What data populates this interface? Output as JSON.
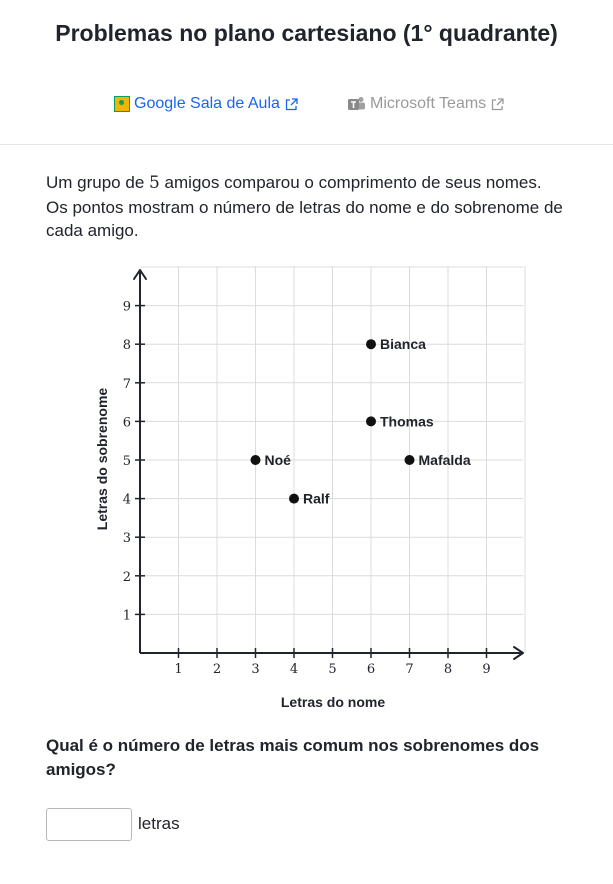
{
  "header": {
    "title": "Problemas no plano cartesiano (1° quadrante)",
    "share_classroom": "Google Sala de Aula",
    "share_teams": "Microsoft Teams"
  },
  "question": {
    "intro_prefix": "Um grupo de ",
    "intro_number": "5",
    "intro_suffix": " amigos comparou o comprimento de seus nomes. Os pontos mostram o número de letras do nome e do sobrenome de cada amigo."
  },
  "chart_data": {
    "type": "scatter",
    "title": "",
    "xlabel": "Letras do nome",
    "ylabel": "Letras do sobrenome",
    "xlim": [
      0,
      10
    ],
    "ylim": [
      0,
      10
    ],
    "xticks": [
      1,
      2,
      3,
      4,
      5,
      6,
      7,
      8,
      9
    ],
    "yticks": [
      1,
      2,
      3,
      4,
      5,
      6,
      7,
      8,
      9
    ],
    "grid": true,
    "points": [
      {
        "label": "Noé",
        "x": 3,
        "y": 5
      },
      {
        "label": "Ralf",
        "x": 4,
        "y": 4
      },
      {
        "label": "Bianca",
        "x": 6,
        "y": 8
      },
      {
        "label": "Thomas",
        "x": 6,
        "y": 6
      },
      {
        "label": "Mafalda",
        "x": 7,
        "y": 5
      }
    ]
  },
  "prompt": {
    "text": "Qual é o número de letras mais comum nos sobrenomes dos amigos?",
    "answer_value": "",
    "answer_placeholder": "",
    "unit": "letras"
  },
  "colors": {
    "link": "#1865f2",
    "muted": "#9a9a9a",
    "text": "#21242c",
    "grid": "#dcdcdc"
  }
}
